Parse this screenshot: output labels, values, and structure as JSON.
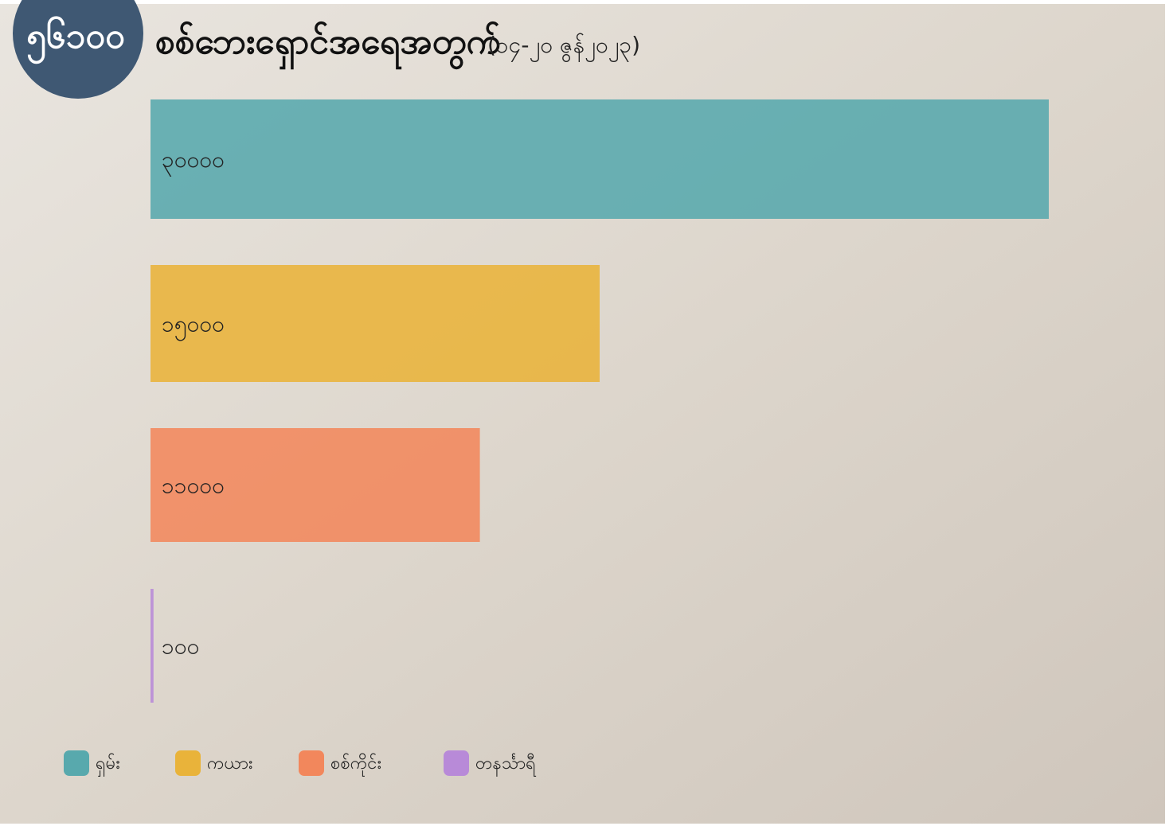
{
  "chart_data": {
    "type": "hbar",
    "badge": "၅၆၁၀၀",
    "title": "စစ်ဘေးရှောင်အရေအတွက်",
    "subtitle": "(၁၄-၂၀ ဇွန်၂၀၂၃)",
    "categories": [
      "ရှမ်း",
      "ကယား",
      "စစ်ကိုင်း",
      "တနင်္သာရီ"
    ],
    "values": [
      30000,
      15000,
      11000,
      100
    ],
    "value_labels": [
      "၃၀၀၀၀",
      "၁၅၀၀၀",
      "၁၁၀၀၀",
      "၁၀၀"
    ],
    "colors": [
      "#58a9ad",
      "#e9b33a",
      "#f2875c",
      "#b88ad8"
    ],
    "xlim": [
      0,
      30000
    ]
  }
}
